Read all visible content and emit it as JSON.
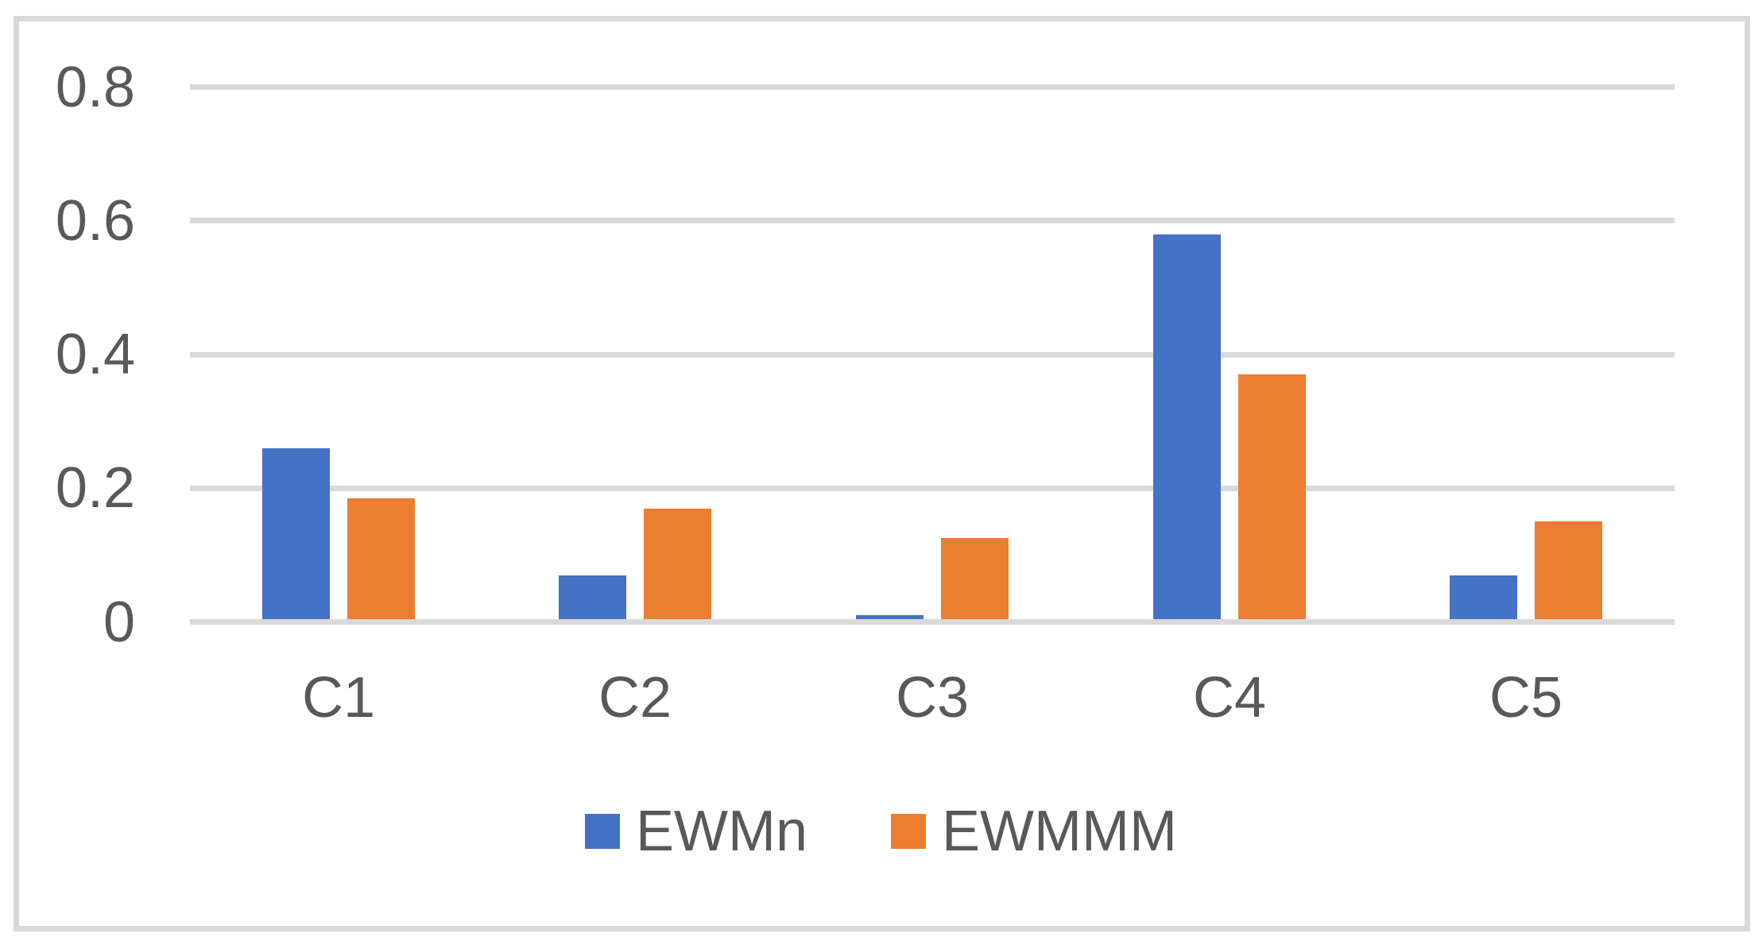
{
  "chart_data": {
    "type": "bar",
    "title": "",
    "categories": [
      "C1",
      "C2",
      "C3",
      "C4",
      "C5"
    ],
    "series": [
      {
        "name": "EWMn",
        "color": "#4472C4",
        "values": [
          0.26,
          0.07,
          0.01,
          0.58,
          0.07
        ]
      },
      {
        "name": "EWMMM",
        "color": "#ED7D31",
        "values": [
          0.185,
          0.17,
          0.125,
          0.37,
          0.15
        ]
      }
    ],
    "yticks": [
      "0",
      "0.2",
      "0.4",
      "0.6",
      "0.8"
    ],
    "ylim": [
      0,
      0.8
    ],
    "ytick_interval": 0.2,
    "grid": true,
    "legend_position": "bottom",
    "colors": {
      "gridline": "#D9D9D9",
      "frame_border": "#D9D9D9",
      "axis_text": "#595959",
      "background": "#FFFFFF"
    }
  }
}
